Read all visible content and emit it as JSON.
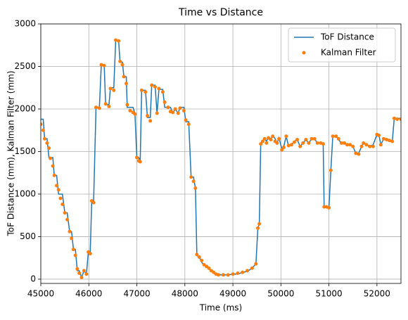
{
  "chart_data": {
    "type": "line",
    "title": "Time vs Distance",
    "x_label": "Time (ms)",
    "y_label": "ToF Distance (mm), Kalman Filter (mm)",
    "xlim": [
      45000,
      52500
    ],
    "ylim": [
      -50,
      3000
    ],
    "xticks": [
      45000,
      46000,
      47000,
      48000,
      49000,
      50000,
      51000,
      52000
    ],
    "yticks": [
      0,
      500,
      1000,
      1500,
      2000,
      2500,
      3000
    ],
    "grid": true,
    "legend": "upper right",
    "x": [
      45000,
      45050,
      45080,
      45130,
      45170,
      45200,
      45250,
      45280,
      45330,
      45370,
      45410,
      45450,
      45500,
      45550,
      45600,
      45640,
      45680,
      45720,
      45760,
      45800,
      45850,
      45900,
      45950,
      45990,
      46030,
      46060,
      46100,
      46150,
      46220,
      46260,
      46320,
      46350,
      46420,
      46450,
      46520,
      46560,
      46620,
      46650,
      46700,
      46730,
      46780,
      46800,
      46860,
      46920,
      46960,
      47000,
      47040,
      47070,
      47100,
      47180,
      47220,
      47280,
      47310,
      47380,
      47420,
      47460,
      47540,
      47580,
      47650,
      47700,
      47750,
      47800,
      47860,
      47900,
      47980,
      48020,
      48080,
      48130,
      48180,
      48220,
      48250,
      48300,
      48350,
      48400,
      48450,
      48500,
      48550,
      48600,
      48650,
      48700,
      48800,
      48900,
      49000,
      49100,
      49200,
      49300,
      49400,
      49480,
      49520,
      49550,
      49580,
      49620,
      49660,
      49700,
      49740,
      49790,
      49830,
      49880,
      49920,
      49960,
      50020,
      50060,
      50110,
      50160,
      50220,
      50280,
      50340,
      50400,
      50460,
      50520,
      50580,
      50640,
      50700,
      50760,
      50830,
      50880,
      50900,
      50950,
      51000,
      51040,
      51080,
      51150,
      51200,
      51260,
      51320,
      51380,
      51440,
      51500,
      51560,
      51620,
      51680,
      51720,
      51780,
      51850,
      51920,
      52000,
      52040,
      52080,
      52140,
      52200,
      52260,
      52320,
      52360,
      52420,
      52500
    ],
    "series": [
      {
        "name": "ToF Distance",
        "color": "#1f77b4",
        "style": "line",
        "values": [
          1880,
          1880,
          1650,
          1650,
          1430,
          1430,
          1430,
          1220,
          1220,
          1000,
          1000,
          1000,
          780,
          780,
          560,
          560,
          350,
          350,
          100,
          100,
          20,
          100,
          60,
          320,
          320,
          920,
          920,
          2020,
          2020,
          2520,
          2520,
          2050,
          2050,
          2250,
          2250,
          2810,
          2810,
          2550,
          2550,
          2380,
          2380,
          2020,
          2020,
          2020,
          1950,
          1430,
          1430,
          1380,
          2220,
          2220,
          1900,
          1900,
          2280,
          2280,
          1950,
          2230,
          2230,
          2020,
          2020,
          2020,
          1950,
          2000,
          1950,
          2020,
          2020,
          1850,
          1850,
          1200,
          1200,
          1070,
          280,
          260,
          200,
          160,
          160,
          120,
          100,
          80,
          60,
          50,
          50,
          50,
          60,
          60,
          80,
          90,
          130,
          180,
          600,
          650,
          1600,
          1620,
          1650,
          1620,
          1670,
          1650,
          1690,
          1650,
          1600,
          1660,
          1530,
          1560,
          1680,
          1560,
          1580,
          1620,
          1640,
          1560,
          1600,
          1640,
          1600,
          1650,
          1650,
          1600,
          1600,
          1600,
          850,
          850,
          840,
          1280,
          1680,
          1680,
          1640,
          1600,
          1600,
          1580,
          1580,
          1560,
          1480,
          1480,
          1560,
          1600,
          1580,
          1560,
          1580,
          1700,
          1700,
          1580,
          1650,
          1650,
          1640,
          1620,
          1890,
          1890,
          1890
        ]
      },
      {
        "name": "Kalman Filter",
        "color": "#ff7f0e",
        "style": "marker",
        "values": [
          1820,
          1750,
          1650,
          1600,
          1540,
          1420,
          1330,
          1220,
          1100,
          1050,
          950,
          880,
          780,
          700,
          560,
          480,
          350,
          280,
          120,
          70,
          20,
          100,
          60,
          320,
          300,
          920,
          900,
          2020,
          2010,
          2520,
          2510,
          2060,
          2030,
          2240,
          2220,
          2810,
          2800,
          2560,
          2520,
          2380,
          2300,
          2050,
          1980,
          1960,
          1940,
          1430,
          1390,
          1380,
          2220,
          2200,
          1920,
          1860,
          2280,
          2260,
          1950,
          2240,
          2200,
          2080,
          2020,
          1970,
          1960,
          2000,
          1950,
          2010,
          1980,
          1870,
          1820,
          1200,
          1150,
          1070,
          290,
          260,
          220,
          170,
          150,
          130,
          100,
          80,
          60,
          50,
          50,
          50,
          60,
          70,
          80,
          100,
          130,
          180,
          600,
          650,
          1590,
          1620,
          1650,
          1600,
          1660,
          1640,
          1680,
          1620,
          1600,
          1650,
          1520,
          1550,
          1680,
          1570,
          1580,
          1610,
          1640,
          1560,
          1600,
          1640,
          1600,
          1650,
          1650,
          1600,
          1600,
          1590,
          850,
          850,
          840,
          1280,
          1680,
          1680,
          1650,
          1600,
          1600,
          1580,
          1580,
          1560,
          1480,
          1470,
          1560,
          1600,
          1580,
          1560,
          1560,
          1700,
          1690,
          1580,
          1650,
          1640,
          1630,
          1620,
          1890,
          1880,
          1880
        ]
      }
    ]
  }
}
